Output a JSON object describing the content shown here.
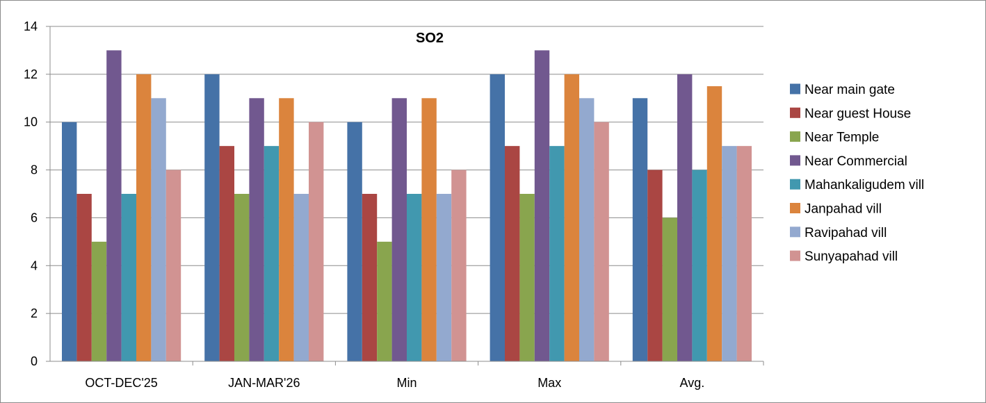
{
  "chart_data": {
    "type": "bar",
    "title": "SO2",
    "xlabel": "",
    "ylabel": "",
    "ylim": [
      0,
      14
    ],
    "ytick_step": 2,
    "grid": "horizontal",
    "legend_position": "right",
    "categories": [
      "OCT-DEC'25",
      "JAN-MAR'26",
      "Min",
      "Max",
      "Avg."
    ],
    "series": [
      {
        "name": "Near main gate",
        "color": "#4572a7",
        "values": [
          10,
          12,
          10,
          12,
          11
        ]
      },
      {
        "name": "Near guest House",
        "color": "#aa4643",
        "values": [
          7,
          9,
          7,
          9,
          8
        ]
      },
      {
        "name": "Near Temple",
        "color": "#89a54e",
        "values": [
          5,
          7,
          5,
          7,
          6
        ]
      },
      {
        "name": "Near Commercial",
        "color": "#71588f",
        "values": [
          13,
          11,
          11,
          13,
          12
        ]
      },
      {
        "name": "Mahankaligudem vill",
        "color": "#4198af",
        "values": [
          7,
          9,
          7,
          9,
          8
        ]
      },
      {
        "name": "Janpahad vill",
        "color": "#db843d",
        "values": [
          12,
          11,
          11,
          12,
          11.5
        ]
      },
      {
        "name": "Ravipahad vill",
        "color": "#93a9cf",
        "values": [
          11,
          7,
          7,
          11,
          9
        ]
      },
      {
        "name": "Sunyapahad vill",
        "color": "#d19392",
        "values": [
          8,
          10,
          8,
          10,
          9
        ]
      }
    ]
  }
}
